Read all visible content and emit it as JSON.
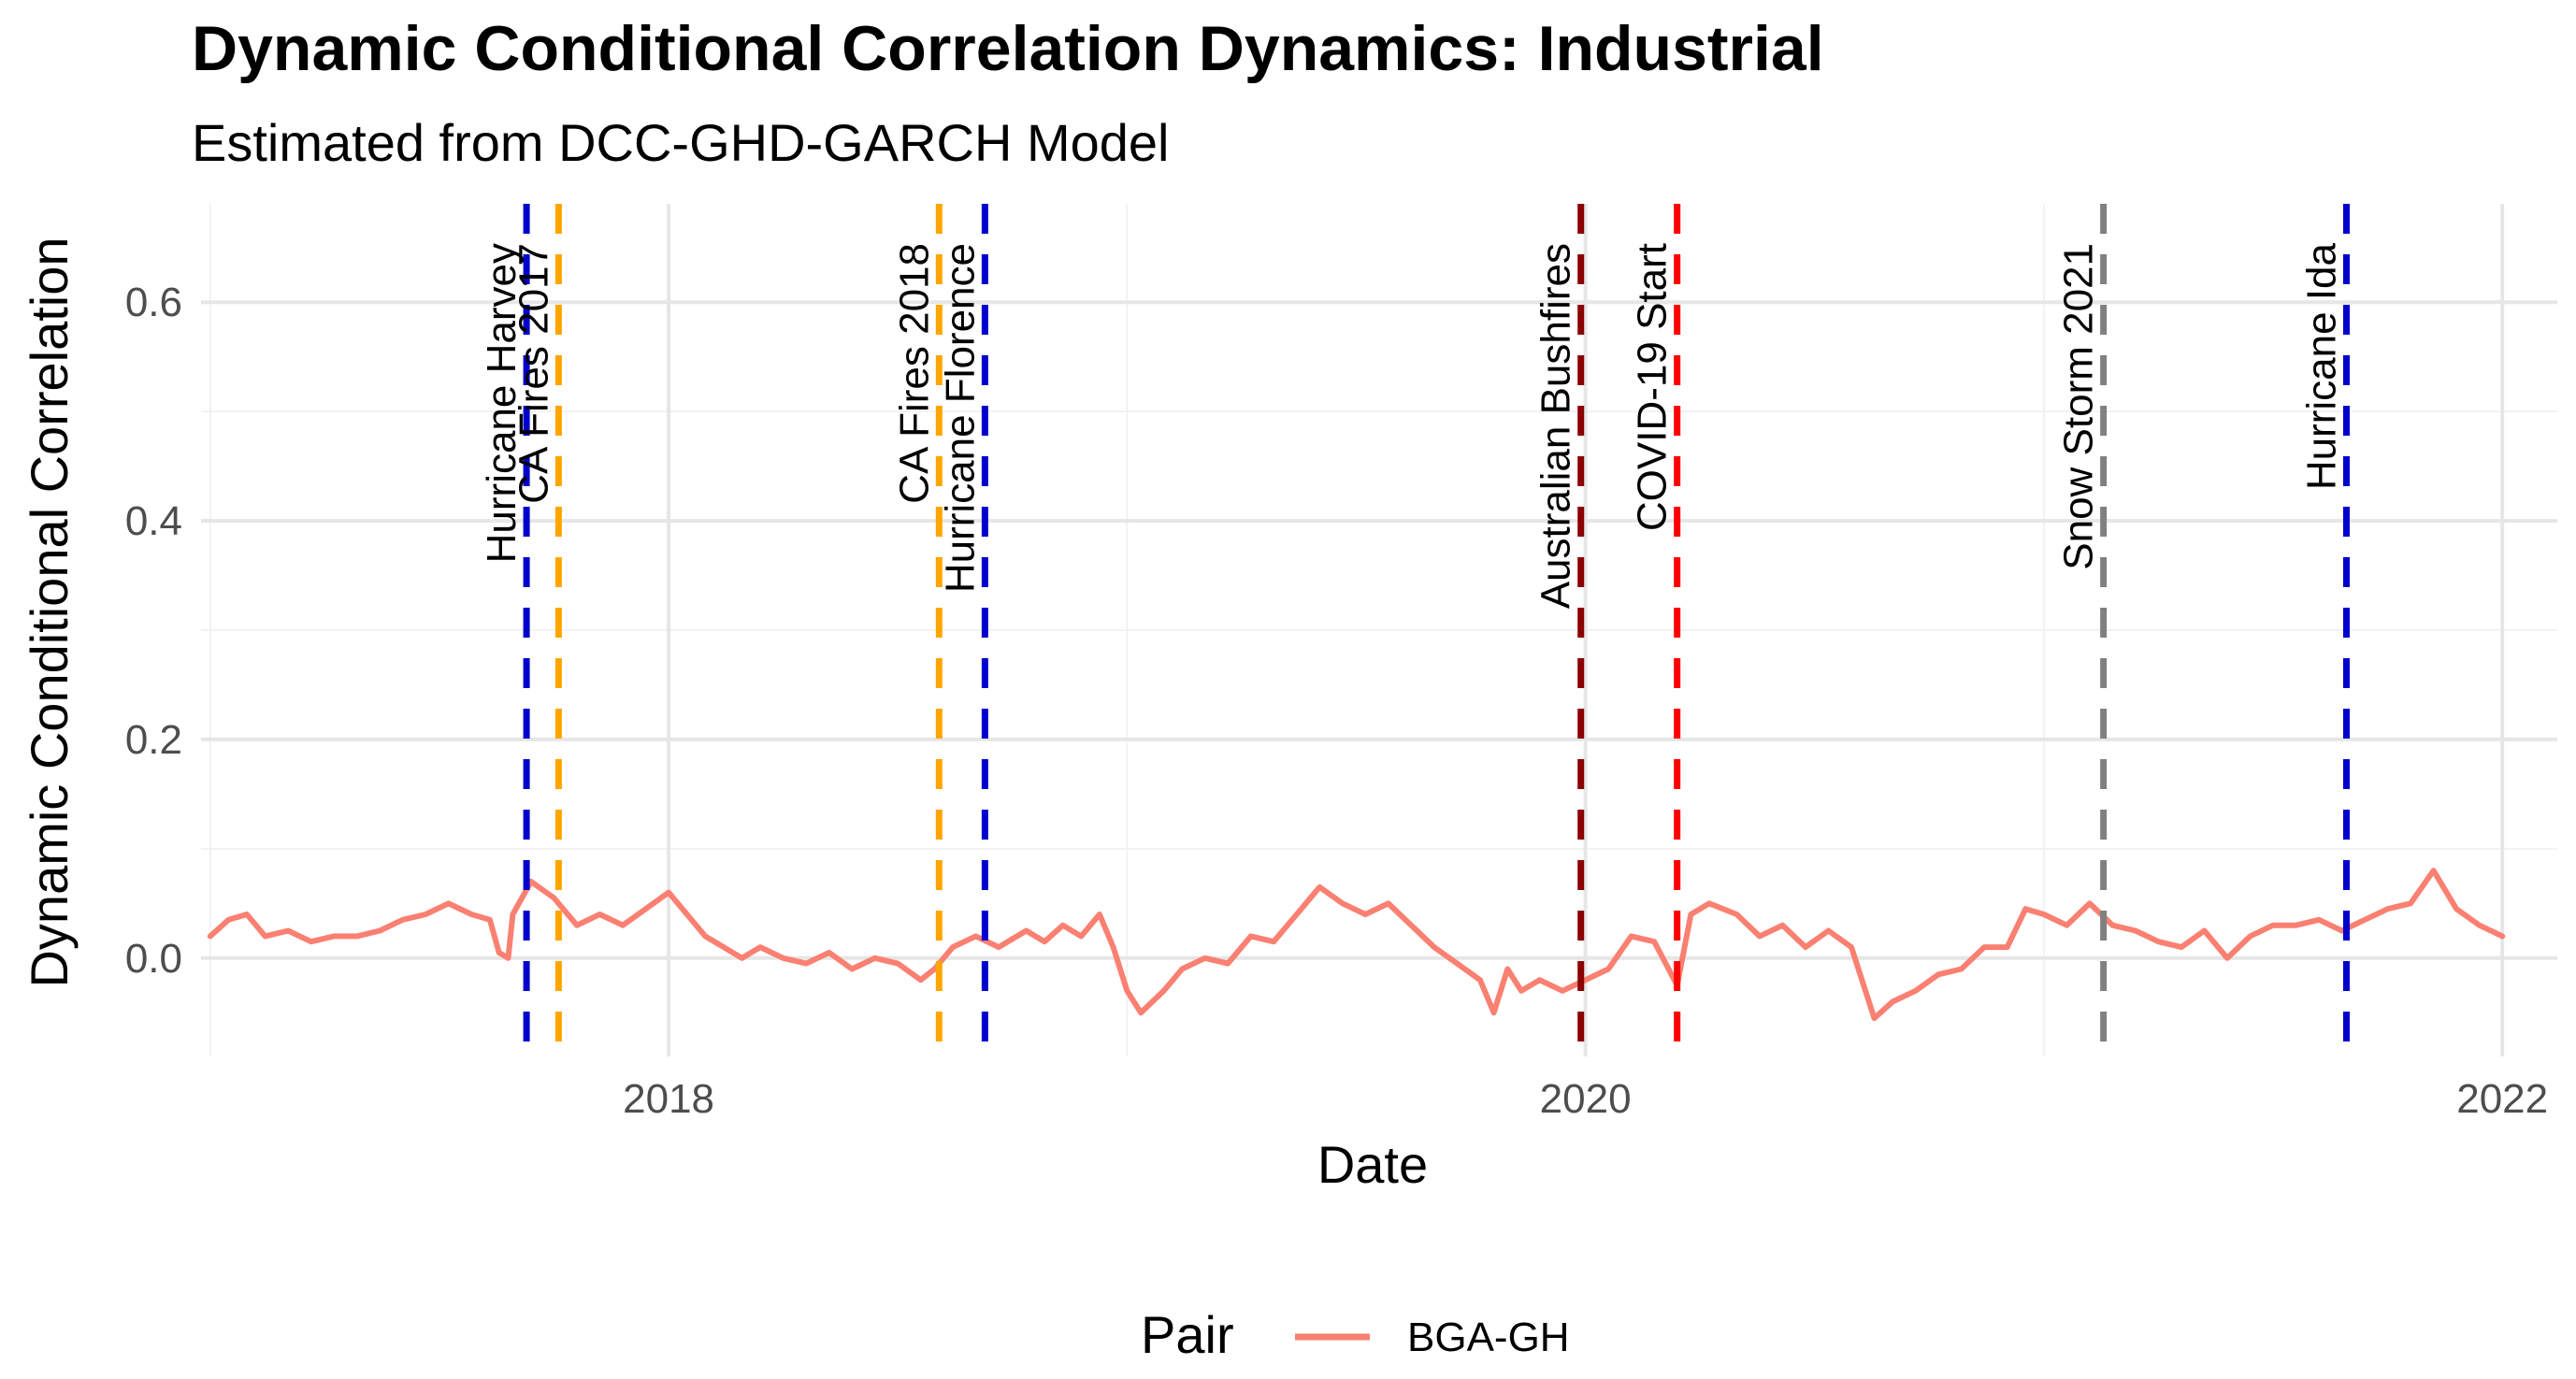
{
  "chart_data": {
    "type": "line",
    "title": "Dynamic Conditional Correlation Dynamics: Industrial",
    "subtitle": "Estimated from DCC-GHD-GARCH Model",
    "xlabel": "Date",
    "ylabel": "Dynamic Conditional Correlation",
    "xlim": [
      2016.98,
      2022.12
    ],
    "ylim": [
      -0.09,
      0.69
    ],
    "x_ticks": [
      {
        "value": 2018,
        "label": "2018"
      },
      {
        "value": 2020,
        "label": "2020"
      },
      {
        "value": 2022,
        "label": "2022"
      }
    ],
    "y_ticks": [
      {
        "value": 0.0,
        "label": "0.0"
      },
      {
        "value": 0.2,
        "label": "0.2"
      },
      {
        "value": 0.4,
        "label": "0.4"
      },
      {
        "value": 0.6,
        "label": "0.6"
      }
    ],
    "grid": true,
    "legend": {
      "position": "bottom",
      "title": "Pair",
      "entries": [
        {
          "label": "BGA-GH",
          "color": "#fa8072"
        }
      ]
    },
    "series": [
      {
        "name": "BGA-GH",
        "color": "#fa8072",
        "x": [
          2017.0,
          2017.04,
          2017.08,
          2017.12,
          2017.17,
          2017.22,
          2017.27,
          2017.32,
          2017.37,
          2017.42,
          2017.47,
          2017.52,
          2017.57,
          2017.61,
          2017.63,
          2017.65,
          2017.66,
          2017.7,
          2017.75,
          2017.8,
          2017.85,
          2017.9,
          2017.95,
          2018.0,
          2018.04,
          2018.08,
          2018.12,
          2018.16,
          2018.2,
          2018.25,
          2018.3,
          2018.35,
          2018.4,
          2018.45,
          2018.5,
          2018.55,
          2018.58,
          2018.62,
          2018.67,
          2018.72,
          2018.78,
          2018.82,
          2018.86,
          2018.9,
          2018.94,
          2018.97,
          2019.0,
          2019.03,
          2019.08,
          2019.12,
          2019.17,
          2019.22,
          2019.27,
          2019.32,
          2019.37,
          2019.42,
          2019.47,
          2019.52,
          2019.57,
          2019.62,
          2019.67,
          2019.72,
          2019.77,
          2019.8,
          2019.83,
          2019.86,
          2019.9,
          2019.95,
          2020.0,
          2020.05,
          2020.1,
          2020.15,
          2020.2,
          2020.23,
          2020.27,
          2020.33,
          2020.38,
          2020.43,
          2020.48,
          2020.53,
          2020.58,
          2020.63,
          2020.67,
          2020.72,
          2020.77,
          2020.82,
          2020.87,
          2020.92,
          2020.96,
          2021.0,
          2021.05,
          2021.1,
          2021.15,
          2021.2,
          2021.25,
          2021.3,
          2021.35,
          2021.4,
          2021.45,
          2021.5,
          2021.55,
          2021.6,
          2021.65,
          2021.7,
          2021.75,
          2021.8,
          2021.85,
          2021.9,
          2021.95,
          2022.0
        ],
        "values": [
          0.02,
          0.035,
          0.04,
          0.02,
          0.025,
          0.015,
          0.02,
          0.02,
          0.025,
          0.035,
          0.04,
          0.05,
          0.04,
          0.035,
          0.005,
          0.0,
          0.04,
          0.07,
          0.055,
          0.03,
          0.04,
          0.03,
          0.045,
          0.06,
          0.04,
          0.02,
          0.01,
          0.0,
          0.01,
          0.0,
          -0.005,
          0.005,
          -0.01,
          0.0,
          -0.005,
          -0.02,
          -0.01,
          0.01,
          0.02,
          0.01,
          0.025,
          0.015,
          0.03,
          0.02,
          0.04,
          0.01,
          -0.03,
          -0.05,
          -0.03,
          -0.01,
          0.0,
          -0.005,
          0.02,
          0.015,
          0.04,
          0.065,
          0.05,
          0.04,
          0.05,
          0.03,
          0.01,
          -0.005,
          -0.02,
          -0.05,
          -0.01,
          -0.03,
          -0.02,
          -0.03,
          -0.02,
          -0.01,
          0.02,
          0.015,
          -0.025,
          0.04,
          0.05,
          0.04,
          0.02,
          0.03,
          0.01,
          0.025,
          0.01,
          -0.055,
          -0.04,
          -0.03,
          -0.015,
          -0.01,
          0.01,
          0.01,
          0.045,
          0.04,
          0.03,
          0.05,
          0.03,
          0.025,
          0.015,
          0.01,
          0.025,
          0.0,
          0.02,
          0.03,
          0.03,
          0.035,
          0.025,
          0.035,
          0.045,
          0.05,
          0.08,
          0.045,
          0.03,
          0.02
        ]
      }
    ],
    "events": [
      {
        "label": "Hurricane Harvey",
        "date": 2017.69,
        "color": "#0000cd",
        "label_anchor": "left"
      },
      {
        "label": "CA Fires 2017",
        "date": 2017.76,
        "color": "#ffa500",
        "label_anchor": "left"
      },
      {
        "label": "CA Fires 2018",
        "date": 2018.59,
        "color": "#ffa500",
        "label_anchor": "left"
      },
      {
        "label": "Hurricane Florence",
        "date": 2018.69,
        "color": "#0000cd",
        "label_anchor": "left"
      },
      {
        "label": "Australian Bushfires",
        "date": 2019.99,
        "color": "#8b0000",
        "label_anchor": "left"
      },
      {
        "label": "COVID-19 Start",
        "date": 2020.2,
        "color": "#ff0000",
        "label_anchor": "left"
      },
      {
        "label": "Snow Storm 2021",
        "date": 2021.13,
        "color": "#808080",
        "label_anchor": "left"
      },
      {
        "label": "Hurricane Ida",
        "date": 2021.66,
        "color": "#0000cd",
        "label_anchor": "left"
      }
    ]
  }
}
